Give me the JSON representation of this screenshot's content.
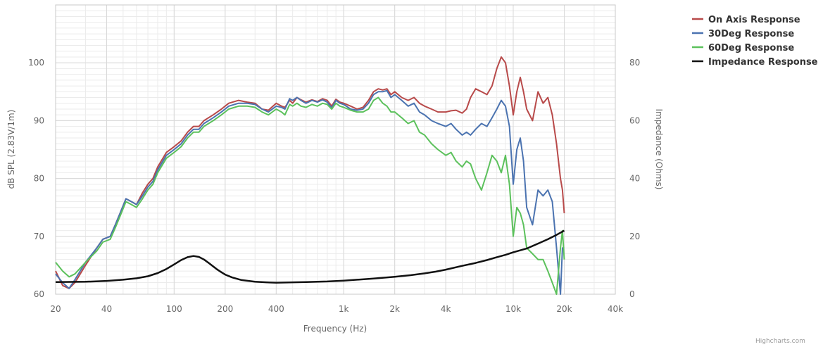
{
  "chart_data": {
    "type": "line",
    "title": "",
    "xlabel": "Frequency (Hz)",
    "ylabel": "dB SPL (2.83V/1m)",
    "y2label": "Impedance (Ohms)",
    "x_scale": "log",
    "xlim": [
      20,
      40000
    ],
    "ylim": [
      60,
      110
    ],
    "y2lim": [
      0,
      100
    ],
    "x_ticks": [
      {
        "value": 20,
        "label": "20"
      },
      {
        "value": 40,
        "label": "40"
      },
      {
        "value": 100,
        "label": "100"
      },
      {
        "value": 200,
        "label": "200"
      },
      {
        "value": 400,
        "label": "400"
      },
      {
        "value": 1000,
        "label": "1k"
      },
      {
        "value": 2000,
        "label": "2k"
      },
      {
        "value": 4000,
        "label": "4k"
      },
      {
        "value": 10000,
        "label": "10k"
      },
      {
        "value": 20000,
        "label": "20k"
      },
      {
        "value": 40000,
        "label": "40k"
      }
    ],
    "y_ticks": [
      {
        "value": 60,
        "label": "60"
      },
      {
        "value": 70,
        "label": "70"
      },
      {
        "value": 80,
        "label": "80"
      },
      {
        "value": 90,
        "label": "90"
      },
      {
        "value": 100,
        "label": "100"
      }
    ],
    "y2_ticks": [
      {
        "value": 0,
        "label": "0"
      },
      {
        "value": 20,
        "label": "20"
      },
      {
        "value": 40,
        "label": "40"
      },
      {
        "value": 60,
        "label": "60"
      },
      {
        "value": 80,
        "label": "80"
      }
    ],
    "grid": true,
    "legend_position": "top-right",
    "series": [
      {
        "name": "On Axis Response",
        "color": "#b84a4a",
        "axis": "left",
        "x": [
          20,
          22,
          24,
          26,
          30,
          35,
          38,
          42,
          45,
          48,
          52,
          56,
          60,
          65,
          70,
          75,
          80,
          90,
          100,
          110,
          120,
          130,
          140,
          150,
          170,
          190,
          210,
          240,
          270,
          300,
          330,
          360,
          400,
          430,
          450,
          480,
          500,
          530,
          560,
          600,
          650,
          700,
          750,
          800,
          850,
          900,
          950,
          1000,
          1100,
          1200,
          1300,
          1400,
          1500,
          1600,
          1700,
          1800,
          1900,
          2000,
          2200,
          2400,
          2600,
          2800,
          3000,
          3300,
          3600,
          4000,
          4300,
          4600,
          5000,
          5300,
          5600,
          6000,
          6500,
          7000,
          7500,
          8000,
          8500,
          9000,
          9500,
          10000,
          10500,
          11000,
          11500,
          12000,
          13000,
          14000,
          15000,
          16000,
          17000,
          18000,
          19000,
          19500,
          20000
        ],
        "y": [
          64,
          61.5,
          61,
          62,
          65,
          68,
          69.5,
          70,
          72,
          74,
          76.5,
          76,
          75.5,
          77.5,
          79,
          80,
          82,
          84.5,
          85.5,
          86.5,
          88,
          89,
          89,
          90,
          91,
          92,
          93,
          93.5,
          93.2,
          93,
          92,
          91.8,
          93,
          92.5,
          92.3,
          93.5,
          93,
          94,
          93.6,
          93.2,
          93.6,
          93.3,
          93.8,
          93.5,
          92.5,
          93.7,
          93.2,
          93,
          92.5,
          92,
          92.3,
          93.5,
          95,
          95.5,
          95.3,
          95.5,
          94.5,
          95,
          94,
          93.5,
          94,
          93,
          92.5,
          92,
          91.5,
          91.5,
          91.7,
          91.8,
          91.3,
          92,
          94,
          95.5,
          95,
          94.5,
          96,
          99,
          101,
          100,
          96,
          91,
          95,
          97.5,
          95,
          92,
          90,
          95,
          93,
          94,
          91,
          86,
          80,
          78,
          74
        ]
      },
      {
        "name": "30Deg Response",
        "color": "#4b73b0",
        "axis": "left",
        "x": [
          20,
          22,
          24,
          26,
          30,
          35,
          38,
          42,
          45,
          48,
          52,
          56,
          60,
          65,
          70,
          75,
          80,
          90,
          100,
          110,
          120,
          130,
          140,
          150,
          170,
          190,
          210,
          240,
          270,
          300,
          330,
          360,
          400,
          430,
          450,
          480,
          500,
          530,
          560,
          600,
          650,
          700,
          750,
          800,
          850,
          900,
          950,
          1000,
          1100,
          1200,
          1300,
          1400,
          1500,
          1600,
          1700,
          1800,
          1900,
          2000,
          2200,
          2400,
          2600,
          2800,
          3000,
          3300,
          3600,
          4000,
          4300,
          4600,
          5000,
          5300,
          5600,
          6000,
          6500,
          7000,
          7500,
          8000,
          8500,
          9000,
          9500,
          10000,
          10500,
          11000,
          11500,
          12000,
          13000,
          14000,
          15000,
          16000,
          17000,
          18000,
          19000,
          19500,
          20000
        ],
        "y": [
          63.5,
          62,
          61,
          62.5,
          65.5,
          68,
          69.5,
          70,
          72,
          74,
          76.5,
          76,
          75.5,
          77,
          78.5,
          79.5,
          81.5,
          84,
          85,
          86,
          87.5,
          88.5,
          88.5,
          89.5,
          90.5,
          91.5,
          92.5,
          93,
          93,
          92.8,
          92,
          91.5,
          92.5,
          92.3,
          92,
          93.8,
          93.5,
          94,
          93.5,
          93,
          93.5,
          93.2,
          93.6,
          93.2,
          92.2,
          93.5,
          93,
          92.8,
          92,
          91.8,
          92,
          93,
          94.5,
          95,
          95,
          95.2,
          94,
          94.5,
          93.5,
          92.5,
          93,
          91.5,
          91,
          90,
          89.5,
          89,
          89.5,
          88.5,
          87.5,
          88,
          87.5,
          88.5,
          89.5,
          89,
          90.5,
          92,
          93.5,
          92.5,
          89,
          79,
          85,
          87,
          83,
          75,
          72,
          78,
          77,
          78,
          76,
          68,
          60,
          68,
          68
        ]
      },
      {
        "name": "60Deg Response",
        "color": "#5cc15c",
        "axis": "left",
        "x": [
          20,
          22,
          24,
          26,
          30,
          35,
          38,
          42,
          45,
          48,
          52,
          56,
          60,
          65,
          70,
          75,
          80,
          90,
          100,
          110,
          120,
          130,
          140,
          150,
          170,
          190,
          210,
          240,
          270,
          300,
          330,
          360,
          400,
          430,
          450,
          480,
          500,
          530,
          560,
          600,
          650,
          700,
          750,
          800,
          850,
          900,
          950,
          1000,
          1100,
          1200,
          1300,
          1400,
          1500,
          1600,
          1700,
          1800,
          1900,
          2000,
          2200,
          2400,
          2600,
          2800,
          3000,
          3300,
          3600,
          4000,
          4300,
          4600,
          5000,
          5300,
          5600,
          6000,
          6500,
          7000,
          7500,
          8000,
          8500,
          9000,
          9500,
          10000,
          10500,
          11000,
          11500,
          12000,
          13000,
          14000,
          15000,
          16000,
          17000,
          18000,
          19000,
          19500,
          20000
        ],
        "y": [
          65.5,
          64,
          63,
          63.5,
          65.5,
          67.5,
          69,
          69.5,
          71.5,
          73.5,
          76,
          75.5,
          75,
          76.5,
          78,
          79,
          81,
          83.5,
          84.5,
          85.5,
          87,
          88,
          88,
          89,
          90,
          91,
          92,
          92.5,
          92.5,
          92.3,
          91.5,
          91,
          92,
          91.5,
          91,
          92.8,
          92.5,
          93,
          92.5,
          92.3,
          92.8,
          92.5,
          93,
          92.8,
          92,
          93,
          92.5,
          92.3,
          91.8,
          91.5,
          91.5,
          92,
          93.5,
          94,
          93,
          92.5,
          91.5,
          91.5,
          90.5,
          89.5,
          90,
          88,
          87.5,
          86,
          85,
          84,
          84.5,
          83,
          82,
          83,
          82.5,
          80,
          78,
          81,
          84,
          83,
          81,
          84,
          79,
          70,
          75,
          74,
          72,
          68,
          67,
          66,
          66,
          64,
          62,
          60,
          68,
          71,
          66
        ]
      },
      {
        "name": "Impedance Response",
        "color": "#111111",
        "axis": "right",
        "x": [
          20,
          30,
          40,
          50,
          60,
          70,
          80,
          90,
          100,
          110,
          120,
          130,
          140,
          150,
          160,
          170,
          180,
          190,
          200,
          220,
          250,
          300,
          350,
          400,
          500,
          600,
          700,
          800,
          1000,
          1200,
          1500,
          2000,
          2500,
          3000,
          3500,
          4000,
          5000,
          6000,
          7000,
          8000,
          9000,
          10000,
          12000,
          14000,
          16000,
          18000,
          20000
        ],
        "y": [
          4.2,
          4.3,
          4.6,
          5,
          5.5,
          6.2,
          7.3,
          8.7,
          10.3,
          11.8,
          12.8,
          13.2,
          12.9,
          12,
          10.8,
          9.6,
          8.5,
          7.6,
          6.8,
          5.8,
          4.9,
          4.3,
          4.1,
          4,
          4.1,
          4.2,
          4.3,
          4.4,
          4.7,
          5,
          5.4,
          6,
          6.6,
          7.2,
          7.8,
          8.5,
          9.8,
          10.8,
          11.8,
          12.8,
          13.6,
          14.5,
          15.8,
          17.5,
          19,
          20.5,
          22
        ]
      }
    ]
  },
  "credits": "Highcharts.com"
}
